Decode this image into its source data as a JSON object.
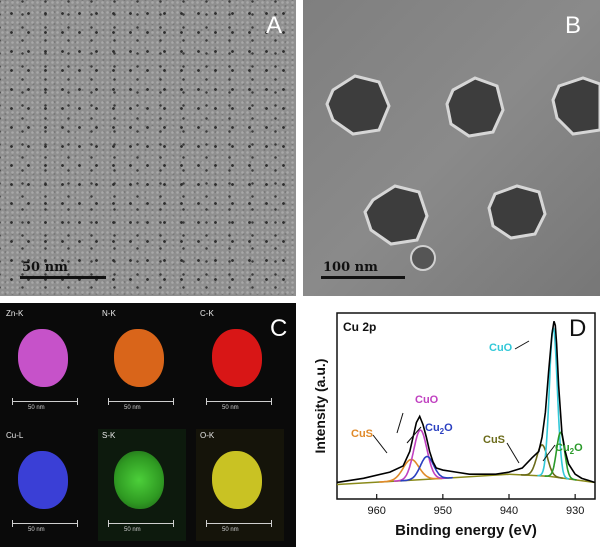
{
  "panels": {
    "A": {
      "letter": "A",
      "scalebar": "50 nm"
    },
    "B": {
      "letter": "B",
      "scalebar": "100 nm"
    },
    "C": {
      "letter": "C",
      "maps": [
        {
          "label": "Zn-K",
          "scale": "50 nm",
          "color": "#c652c9"
        },
        {
          "label": "N-K",
          "scale": "50 nm",
          "color": "#d9651a"
        },
        {
          "label": "C-K",
          "scale": "50 nm",
          "color": "#d81616"
        },
        {
          "label": "Cu-L",
          "scale": "50 nm",
          "color": "#3a3fd6"
        },
        {
          "label": "S-K",
          "scale": "50 nm",
          "color": "#3bb02c"
        },
        {
          "label": "O-K",
          "scale": "50 nm",
          "color": "#c9c223"
        }
      ]
    },
    "D": {
      "letter": "D"
    }
  },
  "chart_data": {
    "type": "line",
    "title": "Cu 2p",
    "xlabel": "Binding energy (eV)",
    "ylabel": "Intensity (a.u.)",
    "xlim": [
      966,
      927
    ],
    "x_reversed": true,
    "xticks": [
      960,
      950,
      940,
      930
    ],
    "xtick_labels": [
      "960",
      "950",
      "940",
      "930"
    ],
    "grid": false,
    "series": [
      {
        "name": "raw",
        "color": "#000000",
        "x": [
          966,
          962,
          958,
          956,
          955,
          954.5,
          954,
          953.5,
          953,
          952.5,
          952,
          951.5,
          951,
          950,
          948,
          946,
          944,
          942,
          940,
          938,
          936.5,
          935.5,
          935,
          934.5,
          934,
          933.5,
          933.2,
          933,
          932.8,
          932.5,
          932,
          931.5,
          931,
          930,
          929,
          928,
          927
        ],
        "y": [
          0.18,
          0.2,
          0.23,
          0.26,
          0.33,
          0.4,
          0.47,
          0.5,
          0.46,
          0.4,
          0.33,
          0.28,
          0.25,
          0.24,
          0.23,
          0.22,
          0.22,
          0.22,
          0.23,
          0.25,
          0.3,
          0.33,
          0.4,
          0.52,
          0.72,
          0.9,
          0.96,
          0.94,
          0.85,
          0.65,
          0.42,
          0.33,
          0.27,
          0.22,
          0.2,
          0.19,
          0.18
        ]
      },
      {
        "name": "CuS",
        "color": "#e08a2a",
        "center": 954.8,
        "height": 0.1,
        "width": 1.2
      },
      {
        "name": "CuO",
        "color": "#c040c0",
        "center": 953.4,
        "height": 0.24,
        "width": 1.0
      },
      {
        "name": "Cu2O",
        "color": "#2a3fc0",
        "center": 952.4,
        "height": 0.11,
        "width": 1.0
      },
      {
        "name": "CuS",
        "color": "#6b6b1a",
        "center": 935.0,
        "height": 0.15,
        "width": 0.8
      },
      {
        "name": "CuO",
        "color": "#32c8d8",
        "center": 933.3,
        "height": 0.72,
        "width": 0.6
      },
      {
        "name": "Cu2O",
        "color": "#2a9a2a",
        "center": 932.2,
        "height": 0.22,
        "width": 0.6
      },
      {
        "name": "background",
        "color": "#8a8a1a",
        "x": [
          966,
          950,
          940,
          934,
          927
        ],
        "y": [
          0.17,
          0.2,
          0.22,
          0.21,
          0.18
        ]
      }
    ],
    "annotations": [
      {
        "text": "CuO",
        "color": "#c040c0"
      },
      {
        "text": "Cu",
        "sub": "2",
        "tail": "O",
        "color": "#2a3fc0"
      },
      {
        "text": "CuS",
        "color": "#e08a2a"
      },
      {
        "text": "CuO",
        "color": "#32c8d8"
      },
      {
        "text": "CuS",
        "color": "#6b6b1a"
      },
      {
        "text": "Cu",
        "sub": "2",
        "tail": "O",
        "color": "#2a9a2a"
      }
    ]
  }
}
